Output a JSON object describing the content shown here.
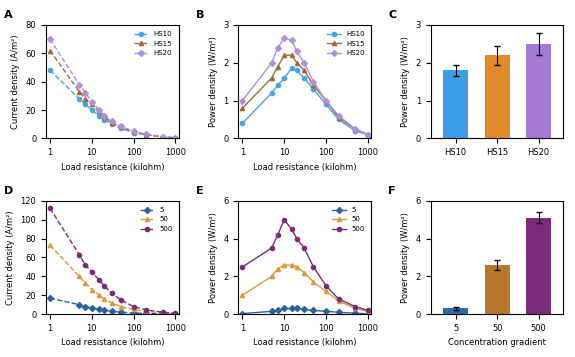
{
  "chart_data": [
    {
      "type": "line",
      "title": "A",
      "x_label": "Load resistance (kilohm)",
      "y_label": "Current density (A/m²)",
      "log": "x",
      "legend": "upper right",
      "x": [
        1,
        5,
        7,
        10,
        15,
        20,
        30,
        50,
        100,
        200,
        500,
        1000
      ],
      "xlim": [
        0.8,
        1200
      ],
      "xticks": [
        1,
        10,
        100,
        1000
      ],
      "ylim": [
        0,
        80
      ],
      "yticks": [
        0,
        20,
        40,
        60,
        80
      ],
      "series": [
        {
          "name": "HS10",
          "color": "#4aa3df",
          "marker": "circle",
          "line_style": "dashed",
          "values": [
            48,
            28,
            24,
            20,
            16,
            13,
            10,
            7,
            4,
            2.5,
            1,
            0.5
          ]
        },
        {
          "name": "HS15",
          "color": "#9c6b3c",
          "marker": "triangle",
          "line_style": "dashed",
          "values": [
            62,
            33,
            28,
            24,
            19,
            15,
            11,
            8,
            4.5,
            2.7,
            1.1,
            0.5
          ]
        },
        {
          "name": "HS20",
          "color": "#b08fd8",
          "marker": "diamond",
          "line_style": "dashed",
          "values": [
            70,
            38,
            32,
            26,
            20,
            16,
            12,
            8.5,
            5,
            3,
            1.2,
            0.6
          ]
        }
      ]
    },
    {
      "type": "line",
      "title": "B",
      "x_label": "Load resistance (kilohm)",
      "y_label": "Power density (W/m²)",
      "log": "x",
      "legend": "upper right",
      "x": [
        1,
        5,
        7,
        10,
        15,
        20,
        30,
        50,
        100,
        200,
        500,
        1000
      ],
      "xlim": [
        0.8,
        1200
      ],
      "xticks": [
        1,
        10,
        100,
        1000
      ],
      "ylim": [
        0,
        3
      ],
      "yticks": [
        0,
        1,
        2,
        3
      ],
      "series": [
        {
          "name": "HS10",
          "color": "#4aa3df",
          "marker": "circle",
          "line_style": "solid",
          "values": [
            0.4,
            1.2,
            1.4,
            1.6,
            1.85,
            1.8,
            1.6,
            1.3,
            0.9,
            0.5,
            0.2,
            0.1
          ]
        },
        {
          "name": "HS15",
          "color": "#9c6b3c",
          "marker": "triangle",
          "line_style": "solid",
          "values": [
            0.8,
            1.6,
            1.9,
            2.2,
            2.2,
            2.0,
            1.8,
            1.4,
            1.0,
            0.55,
            0.25,
            0.1
          ]
        },
        {
          "name": "HS20",
          "color": "#b08fd8",
          "marker": "diamond",
          "line_style": "solid",
          "values": [
            1.0,
            2.0,
            2.4,
            2.65,
            2.6,
            2.3,
            2.0,
            1.5,
            1.0,
            0.6,
            0.25,
            0.1
          ]
        }
      ]
    },
    {
      "type": "bar",
      "title": "C",
      "y_label": "Power density (W/m²)",
      "categories": [
        "HS10",
        "HS15",
        "HS20"
      ],
      "values": [
        1.8,
        2.2,
        2.5
      ],
      "errors": [
        0.15,
        0.25,
        0.3
      ],
      "colors": [
        "#3c9ee5",
        "#e08a2c",
        "#a779d6"
      ],
      "ylim": [
        0,
        3
      ],
      "yticks": [
        0,
        1,
        2,
        3
      ]
    },
    {
      "type": "line",
      "title": "D",
      "x_label": "Load resistance (kilohm)",
      "y_label": "Current density (A/m²)",
      "log": "x",
      "legend": "upper right",
      "x": [
        1,
        5,
        7,
        10,
        15,
        20,
        30,
        50,
        100,
        200,
        500,
        1000
      ],
      "xlim": [
        0.8,
        1200
      ],
      "xticks": [
        1,
        10,
        100,
        1000
      ],
      "ylim": [
        0,
        120
      ],
      "yticks": [
        0,
        20,
        40,
        60,
        80,
        100,
        120
      ],
      "series": [
        {
          "name": "5",
          "color": "#2b5f9e",
          "marker": "diamond",
          "line_style": "dashed",
          "values": [
            17,
            10,
            8,
            6,
            5,
            4,
            3,
            2,
            1.2,
            0.7,
            0.3,
            0.15
          ]
        },
        {
          "name": "50",
          "color": "#d99a3e",
          "marker": "triangle",
          "line_style": "dashed",
          "values": [
            73,
            40,
            33,
            26,
            20,
            16,
            12,
            8,
            5,
            2.8,
            1.2,
            0.6
          ]
        },
        {
          "name": "500",
          "color": "#7a2b7a",
          "marker": "circle",
          "line_style": "dashed",
          "values": [
            112,
            63,
            52,
            45,
            36,
            30,
            22,
            15,
            8,
            4.5,
            2,
            1
          ]
        }
      ]
    },
    {
      "type": "line",
      "title": "E",
      "x_label": "Load resistance (kilohm)",
      "y_label": "Power density (W/m²)",
      "log": "x",
      "legend": "upper right",
      "x": [
        1,
        5,
        7,
        10,
        15,
        20,
        30,
        50,
        100,
        200,
        500,
        1000
      ],
      "xlim": [
        0.8,
        1200
      ],
      "xticks": [
        1,
        10,
        100,
        1000
      ],
      "ylim": [
        0,
        6
      ],
      "yticks": [
        0,
        2,
        4,
        6
      ],
      "series": [
        {
          "name": "5",
          "color": "#2b5f9e",
          "marker": "diamond",
          "line_style": "solid",
          "values": [
            0.03,
            0.15,
            0.2,
            0.3,
            0.3,
            0.3,
            0.25,
            0.2,
            0.15,
            0.1,
            0.05,
            0.02
          ]
        },
        {
          "name": "50",
          "color": "#d99a3e",
          "marker": "triangle",
          "line_style": "solid",
          "values": [
            1.0,
            2.0,
            2.4,
            2.6,
            2.6,
            2.5,
            2.2,
            1.7,
            1.2,
            0.7,
            0.3,
            0.15
          ]
        },
        {
          "name": "500",
          "color": "#7a2b7a",
          "marker": "circle",
          "line_style": "solid",
          "values": [
            2.5,
            3.5,
            4.2,
            5.0,
            4.5,
            4.0,
            3.5,
            2.5,
            1.5,
            0.8,
            0.4,
            0.2
          ]
        }
      ]
    },
    {
      "type": "bar",
      "title": "F",
      "x_label": "Concentration gradient",
      "y_label": "Power density (W/m²)",
      "categories": [
        "5",
        "50",
        "500"
      ],
      "values": [
        0.3,
        2.6,
        5.1
      ],
      "errors": [
        0.1,
        0.25,
        0.3
      ],
      "colors": [
        "#2b6cb0",
        "#b8762e",
        "#7a2b7a"
      ],
      "ylim": [
        0,
        6
      ],
      "yticks": [
        0,
        2,
        4,
        6
      ]
    }
  ]
}
